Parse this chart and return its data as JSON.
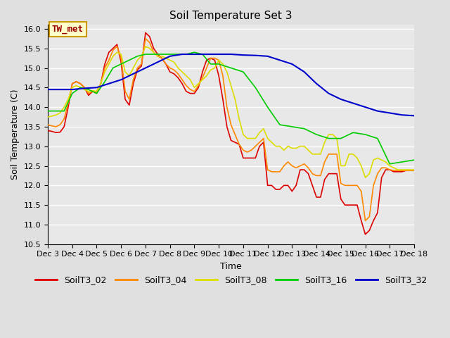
{
  "title": "Soil Temperature Set 3",
  "xlabel": "Time",
  "ylabel": "Soil Temperature (C)",
  "ylim": [
    10.5,
    16.1
  ],
  "xlim": [
    0,
    360
  ],
  "x_tick_labels": [
    "Dec 3",
    "Dec 4",
    "Dec 5",
    "Dec 6",
    "Dec 7",
    "Dec 8",
    "Dec 9",
    "Dec 10",
    "Dec 11",
    "Dec 12",
    "Dec 13",
    "Dec 14",
    "Dec 15",
    "Dec 16",
    "Dec 17",
    "Dec 18"
  ],
  "x_tick_positions": [
    0,
    24,
    48,
    72,
    96,
    120,
    144,
    168,
    192,
    216,
    240,
    264,
    288,
    312,
    336,
    360
  ],
  "annotation_text": "TW_met",
  "annotation_box_color": "#ffffcc",
  "annotation_text_color": "#990000",
  "annotation_border_color": "#cc9900",
  "series_colors": {
    "SoilT3_02": "#dd0000",
    "SoilT3_04": "#ff8800",
    "SoilT3_08": "#dddd00",
    "SoilT3_16": "#00cc00",
    "SoilT3_32": "#0000cc"
  },
  "bg_color": "#e0e0e0",
  "plot_bg_color": "#e8e8e8",
  "grid_color": "#ffffff",
  "title_fontsize": 11,
  "axis_label_fontsize": 9,
  "tick_fontsize": 8,
  "legend_fontsize": 9,
  "series02_t": [
    0,
    4,
    8,
    12,
    16,
    20,
    24,
    28,
    32,
    36,
    40,
    44,
    48,
    52,
    56,
    60,
    64,
    68,
    72,
    76,
    80,
    84,
    88,
    92,
    96,
    100,
    104,
    108,
    112,
    116,
    120,
    124,
    128,
    132,
    136,
    140,
    144,
    148,
    152,
    156,
    160,
    164,
    168,
    172,
    176,
    180,
    184,
    188,
    192,
    196,
    200,
    204,
    208,
    212,
    216,
    220,
    224,
    228,
    232,
    236,
    240,
    244,
    248,
    252,
    256,
    260,
    264,
    268,
    272,
    276,
    280,
    284,
    288,
    292,
    296,
    300,
    304,
    308,
    312,
    316,
    320,
    324,
    328,
    332,
    336,
    340,
    344,
    348,
    352,
    356,
    360
  ],
  "series02_v": [
    13.4,
    13.38,
    13.35,
    13.36,
    13.5,
    14.0,
    14.6,
    14.65,
    14.6,
    14.5,
    14.3,
    14.4,
    14.4,
    14.6,
    15.1,
    15.4,
    15.5,
    15.6,
    15.15,
    14.2,
    14.05,
    14.6,
    14.95,
    15.05,
    15.9,
    15.8,
    15.5,
    15.35,
    15.25,
    15.1,
    14.9,
    14.85,
    14.75,
    14.6,
    14.4,
    14.35,
    14.35,
    14.5,
    14.9,
    15.2,
    15.25,
    15.2,
    14.8,
    14.2,
    13.5,
    13.15,
    13.1,
    13.05,
    12.7,
    12.7,
    12.7,
    12.7,
    13.0,
    13.1,
    12.0,
    12.0,
    11.9,
    11.9,
    12.0,
    12.0,
    11.85,
    12.0,
    12.4,
    12.4,
    12.3,
    12.0,
    11.7,
    11.7,
    12.15,
    12.3,
    12.3,
    12.3,
    11.65,
    11.5,
    11.5,
    11.5,
    11.5,
    11.1,
    10.75,
    10.85,
    11.1,
    11.3,
    12.2,
    12.4,
    12.4,
    12.35,
    12.35,
    12.35,
    12.38,
    12.38,
    12.38
  ],
  "series04_t": [
    0,
    4,
    8,
    12,
    16,
    20,
    24,
    28,
    32,
    36,
    40,
    44,
    48,
    52,
    56,
    60,
    64,
    68,
    72,
    76,
    80,
    84,
    88,
    92,
    96,
    100,
    104,
    108,
    112,
    116,
    120,
    124,
    128,
    132,
    136,
    140,
    144,
    148,
    152,
    156,
    160,
    164,
    168,
    172,
    176,
    180,
    184,
    188,
    192,
    196,
    200,
    204,
    208,
    212,
    216,
    220,
    224,
    228,
    232,
    236,
    240,
    244,
    248,
    252,
    256,
    260,
    264,
    268,
    272,
    276,
    280,
    284,
    288,
    292,
    296,
    300,
    304,
    308,
    312,
    316,
    320,
    324,
    328,
    332,
    336,
    340,
    344,
    348,
    352,
    356,
    360
  ],
  "series04_v": [
    13.55,
    13.52,
    13.5,
    13.55,
    13.7,
    14.1,
    14.6,
    14.65,
    14.6,
    14.5,
    14.35,
    14.4,
    14.35,
    14.6,
    15.0,
    15.2,
    15.45,
    15.55,
    15.25,
    14.4,
    14.2,
    14.7,
    15.0,
    15.1,
    15.75,
    15.65,
    15.4,
    15.3,
    15.25,
    15.1,
    15.0,
    14.95,
    14.85,
    14.7,
    14.55,
    14.45,
    14.4,
    14.55,
    14.75,
    15.0,
    15.25,
    15.25,
    15.2,
    14.8,
    14.0,
    13.55,
    13.3,
    13.05,
    12.9,
    12.85,
    12.9,
    13.0,
    13.1,
    13.2,
    12.4,
    12.35,
    12.35,
    12.35,
    12.5,
    12.6,
    12.5,
    12.45,
    12.5,
    12.55,
    12.45,
    12.3,
    12.25,
    12.25,
    12.6,
    12.8,
    12.8,
    12.8,
    12.05,
    12.0,
    12.0,
    12.0,
    12.0,
    11.85,
    11.1,
    11.2,
    12.0,
    12.3,
    12.45,
    12.45,
    12.4,
    12.38,
    12.38,
    12.38,
    12.38,
    12.38,
    12.38
  ],
  "series08_t": [
    0,
    4,
    8,
    12,
    16,
    20,
    24,
    28,
    32,
    36,
    40,
    44,
    48,
    52,
    56,
    60,
    64,
    68,
    72,
    76,
    80,
    84,
    88,
    92,
    96,
    100,
    104,
    108,
    112,
    116,
    120,
    124,
    128,
    132,
    136,
    140,
    144,
    148,
    152,
    156,
    160,
    164,
    168,
    172,
    176,
    180,
    184,
    188,
    192,
    196,
    200,
    204,
    208,
    212,
    216,
    220,
    224,
    228,
    232,
    236,
    240,
    244,
    248,
    252,
    256,
    260,
    264,
    268,
    272,
    276,
    280,
    284,
    288,
    292,
    296,
    300,
    304,
    308,
    312,
    316,
    320,
    324,
    328,
    332,
    336,
    340,
    344,
    348,
    352,
    356,
    360
  ],
  "series08_v": [
    13.75,
    13.77,
    13.8,
    13.85,
    14.0,
    14.2,
    14.5,
    14.55,
    14.5,
    14.45,
    14.4,
    14.42,
    14.4,
    14.6,
    14.9,
    15.1,
    15.3,
    15.4,
    15.35,
    14.9,
    14.8,
    15.0,
    15.2,
    15.3,
    15.55,
    15.5,
    15.4,
    15.3,
    15.3,
    15.25,
    15.2,
    15.15,
    15.0,
    14.9,
    14.8,
    14.7,
    14.5,
    14.6,
    14.7,
    14.8,
    14.95,
    15.0,
    15.2,
    15.1,
    14.9,
    14.55,
    14.2,
    13.7,
    13.3,
    13.2,
    13.2,
    13.2,
    13.35,
    13.45,
    13.2,
    13.1,
    13.0,
    13.0,
    12.9,
    13.0,
    12.95,
    12.95,
    13.0,
    13.0,
    12.9,
    12.8,
    12.8,
    12.8,
    13.1,
    13.3,
    13.3,
    13.2,
    12.5,
    12.5,
    12.8,
    12.8,
    12.7,
    12.5,
    12.2,
    12.3,
    12.65,
    12.7,
    12.65,
    12.6,
    12.5,
    12.45,
    12.4,
    12.4,
    12.4,
    12.4,
    12.4
  ],
  "series16_t": [
    0,
    8,
    16,
    24,
    32,
    40,
    48,
    56,
    64,
    72,
    80,
    88,
    96,
    104,
    112,
    120,
    128,
    136,
    144,
    152,
    160,
    168,
    180,
    192,
    204,
    216,
    228,
    240,
    252,
    264,
    276,
    288,
    300,
    312,
    324,
    336,
    348,
    360
  ],
  "series16_v": [
    13.9,
    13.9,
    13.9,
    14.35,
    14.5,
    14.45,
    14.35,
    14.65,
    15.0,
    15.1,
    15.2,
    15.3,
    15.35,
    15.35,
    15.35,
    15.35,
    15.35,
    15.35,
    15.4,
    15.35,
    15.1,
    15.1,
    15.0,
    14.9,
    14.5,
    14.0,
    13.55,
    13.5,
    13.45,
    13.3,
    13.2,
    13.2,
    13.35,
    13.3,
    13.2,
    12.55,
    12.6,
    12.65
  ],
  "series32_t": [
    0,
    12,
    24,
    36,
    48,
    60,
    72,
    84,
    96,
    108,
    120,
    132,
    144,
    156,
    168,
    180,
    192,
    204,
    216,
    228,
    240,
    252,
    264,
    276,
    288,
    300,
    312,
    324,
    336,
    348,
    360
  ],
  "series32_v": [
    14.45,
    14.45,
    14.45,
    14.48,
    14.5,
    14.6,
    14.7,
    14.85,
    15.0,
    15.15,
    15.3,
    15.35,
    15.35,
    15.35,
    15.35,
    15.35,
    15.33,
    15.32,
    15.3,
    15.2,
    15.1,
    14.9,
    14.6,
    14.35,
    14.2,
    14.1,
    14.0,
    13.9,
    13.85,
    13.8,
    13.78
  ]
}
